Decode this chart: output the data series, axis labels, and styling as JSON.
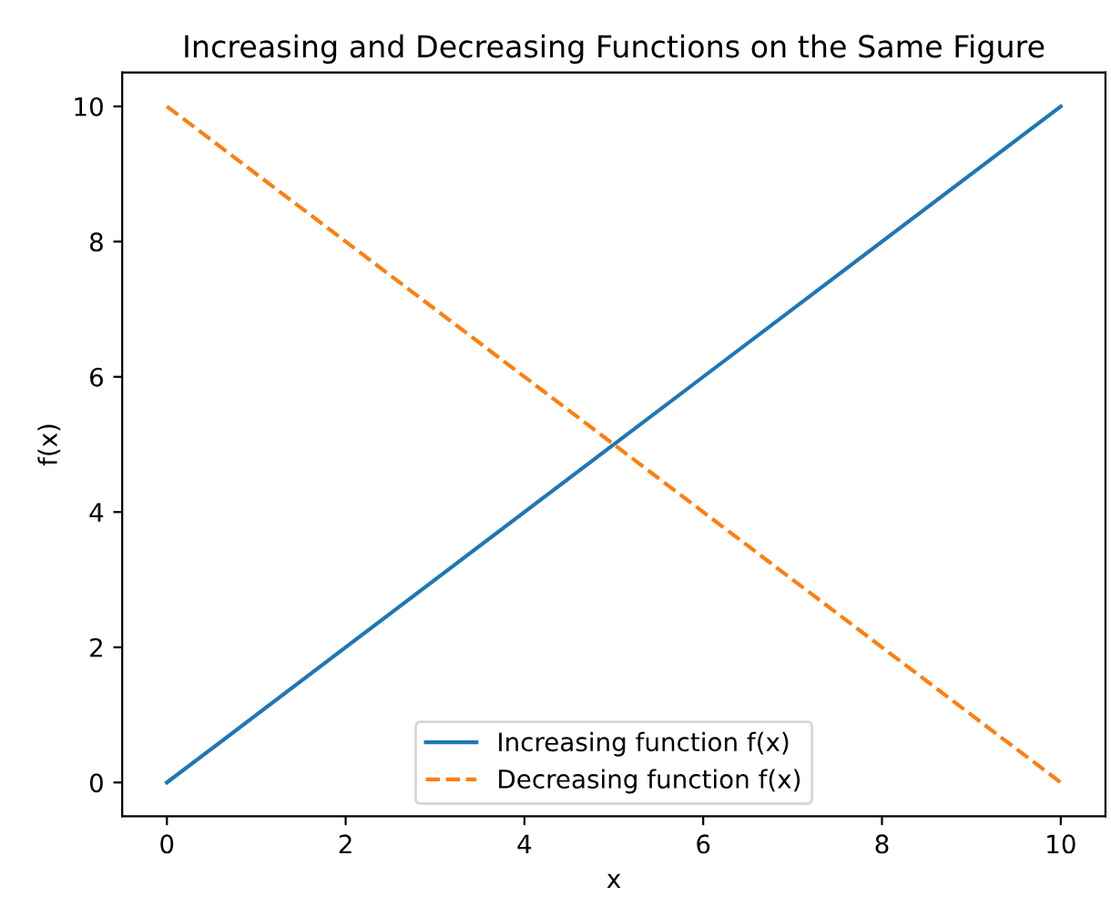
{
  "chart_data": {
    "type": "line",
    "title": "Increasing and Decreasing Functions on the Same Figure",
    "xlabel": "x",
    "ylabel": "f(x)",
    "x": [
      0,
      10
    ],
    "series": [
      {
        "name": "Increasing function f(x)",
        "color": "#1f77b4",
        "values": [
          0,
          10
        ],
        "line_style": "solid"
      },
      {
        "name": "Decreasing function f(x)",
        "color": "#ff7f0e",
        "values": [
          10,
          0
        ],
        "line_style": "dashed"
      }
    ],
    "xlim": [
      -0.5,
      10.5
    ],
    "ylim": [
      -0.5,
      10.5
    ],
    "xticks": [
      0,
      2,
      4,
      6,
      8,
      10
    ],
    "yticks": [
      0,
      2,
      4,
      6,
      8,
      10
    ],
    "grid": false,
    "legend": "bottom",
    "marker": "none"
  }
}
